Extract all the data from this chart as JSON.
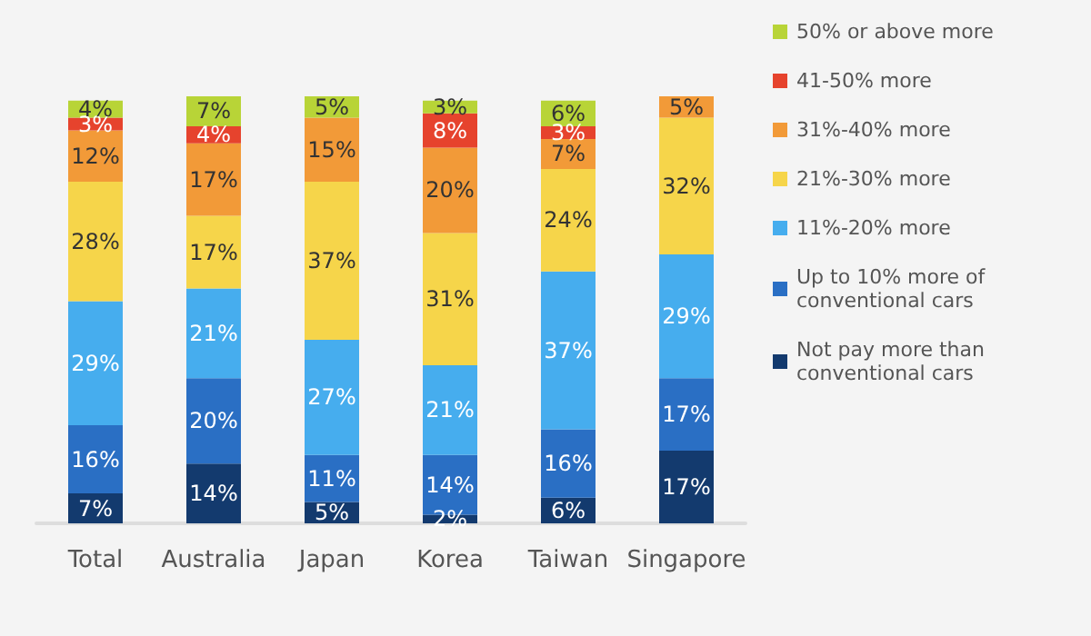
{
  "chart_data": {
    "type": "bar",
    "stacked": true,
    "legend": "right",
    "categories": [
      "Total",
      "Australia",
      "Japan",
      "Korea",
      "Taiwan",
      "Singapore"
    ],
    "series": [
      {
        "name": "Not pay more than conventional cars",
        "color": "#133a6e",
        "values": [
          7,
          14,
          5,
          2,
          6,
          17
        ],
        "value_labels": [
          "7%",
          "14%",
          "5%",
          "2%",
          "6%",
          "17%"
        ]
      },
      {
        "name": "Up to 10% more of conventional cars",
        "color": "#2a6fc4",
        "values": [
          16,
          20,
          11,
          14,
          16,
          17
        ],
        "value_labels": [
          "16%",
          "20%",
          "11%",
          "14%",
          "16%",
          "17%"
        ]
      },
      {
        "name": "11%-20% more",
        "color": "#46adee",
        "values": [
          29,
          21,
          27,
          21,
          37,
          29
        ],
        "value_labels": [
          "29%",
          "21%",
          "27%",
          "21%",
          "37%",
          "29%"
        ]
      },
      {
        "name": "21%-30% more",
        "color": "#f6d54a",
        "values": [
          28,
          17,
          37,
          31,
          24,
          32
        ],
        "value_labels": [
          "28%",
          "17%",
          "37%",
          "31%",
          "24%",
          "32%"
        ]
      },
      {
        "name": "31%-40% more",
        "color": "#f29a38",
        "values": [
          12,
          17,
          15,
          20,
          7,
          5
        ],
        "value_labels": [
          "12%",
          "17%",
          "15%",
          "20%",
          "7%",
          "5%"
        ]
      },
      {
        "name": "41-50% more",
        "color": "#e6432d",
        "values": [
          3,
          4,
          null,
          8,
          3,
          null
        ],
        "value_labels": [
          "3%",
          "4%",
          null,
          "8%",
          "3%",
          null
        ]
      },
      {
        "name": "50% or above more",
        "color": "#b8d437",
        "values": [
          4,
          7,
          5,
          3,
          6,
          null
        ],
        "value_labels": [
          "4%",
          "7%",
          "5%",
          "3%",
          "6%",
          null
        ]
      }
    ]
  }
}
